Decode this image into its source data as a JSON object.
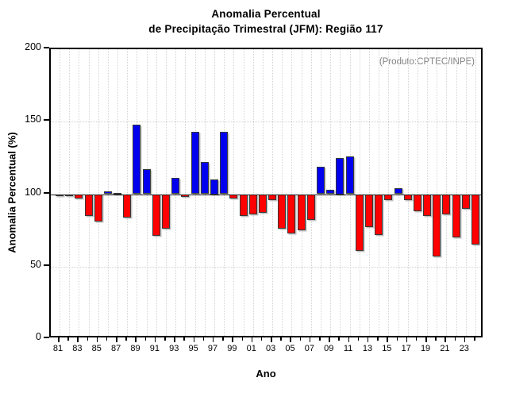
{
  "title_line1": "Anomalia Percentual",
  "title_line2": "de Precipitação Trimestral (JFM): Região 117",
  "source_note": "(Produto:CPTEC/INPE)",
  "colors": {
    "above_baseline": "#0000ee",
    "below_baseline": "#fe0000",
    "bar_border": "#3a3a3a",
    "note_gray": "#818181"
  },
  "chart_data": {
    "type": "bar",
    "title": "Anomalia Percentual de Precipitação Trimestral (JFM): Região 117",
    "xlabel": "Ano",
    "ylabel": "Anomalia Percentual (%)",
    "ylim": [
      0,
      200
    ],
    "baseline": 100,
    "y_ticks": [
      0,
      50,
      100,
      150,
      200
    ],
    "h_gridlines": [
      50,
      150
    ],
    "x_tick_labels": [
      "81",
      "83",
      "85",
      "87",
      "89",
      "91",
      "93",
      "95",
      "97",
      "99",
      "01",
      "03",
      "05",
      "07",
      "09",
      "11",
      "13",
      "15",
      "17",
      "19",
      "21",
      "23"
    ],
    "years": [
      1981,
      1982,
      1983,
      1984,
      1985,
      1986,
      1987,
      1988,
      1989,
      1990,
      1991,
      1992,
      1993,
      1994,
      1995,
      1996,
      1997,
      1998,
      1999,
      2000,
      2001,
      2002,
      2003,
      2004,
      2005,
      2006,
      2007,
      2008,
      2009,
      2010,
      2011,
      2012,
      2013,
      2014,
      2015,
      2016,
      2017,
      2018,
      2019,
      2020,
      2021,
      2022,
      2023,
      2024
    ],
    "values": [
      100,
      99,
      97,
      85,
      81,
      102,
      101,
      84,
      148,
      117,
      71,
      76,
      111,
      98,
      143,
      122,
      110,
      143,
      97,
      85,
      86,
      87,
      96,
      76,
      73,
      75,
      82,
      119,
      103,
      125,
      126,
      61,
      77,
      72,
      96,
      104,
      96,
      88,
      85,
      57,
      86,
      70,
      90,
      65
    ],
    "legend": "blue = acima de 100%, vermelho = abaixo de 100%",
    "grid": "dotted vertical per year, dotted horizontal at 50 and 150"
  }
}
